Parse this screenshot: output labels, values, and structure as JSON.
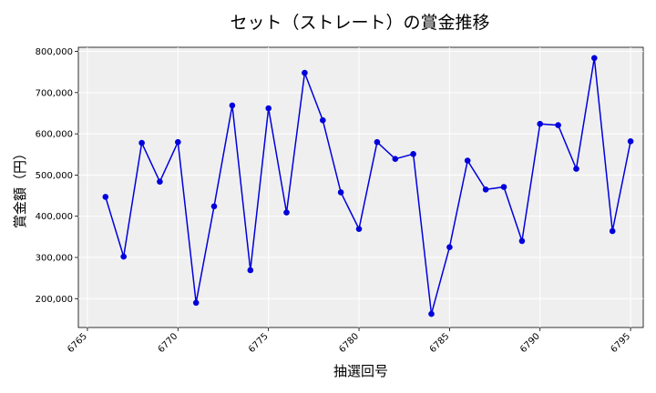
{
  "chart_data": {
    "type": "line",
    "title": "セット（ストレート）の賞金推移",
    "xlabel": "抽選回号",
    "ylabel": "賞金額（円）",
    "xlim": [
      6764.5,
      6795.7
    ],
    "ylim": [
      130000,
      810000
    ],
    "x_ticks": [
      6765,
      6770,
      6775,
      6780,
      6785,
      6790,
      6795
    ],
    "y_ticks": [
      200000,
      300000,
      400000,
      500000,
      600000,
      700000,
      800000
    ],
    "y_tick_labels": [
      "200,000",
      "300,000",
      "400,000",
      "500,000",
      "600,000",
      "700,000",
      "800,000"
    ],
    "grid": true,
    "colors": {
      "line": "#0000dd",
      "marker": "#0000dd",
      "plot_bg": "#efefef",
      "grid": "#ffffff"
    },
    "series": [
      {
        "x": [
          6766,
          6767,
          6768,
          6769,
          6770,
          6771,
          6772,
          6773,
          6774,
          6775,
          6776,
          6777,
          6778,
          6779,
          6780,
          6781,
          6782,
          6783,
          6784,
          6785,
          6786,
          6787,
          6788,
          6789,
          6790,
          6791,
          6792,
          6793,
          6794,
          6795
        ],
        "values": [
          447000,
          302000,
          578000,
          484000,
          580000,
          190000,
          424000,
          669000,
          269000,
          662000,
          409000,
          748000,
          633000,
          458000,
          369000,
          580000,
          539000,
          551000,
          163000,
          325000,
          535000,
          465000,
          471000,
          340000,
          624000,
          621000,
          515000,
          784000,
          364000,
          582000
        ]
      }
    ]
  }
}
